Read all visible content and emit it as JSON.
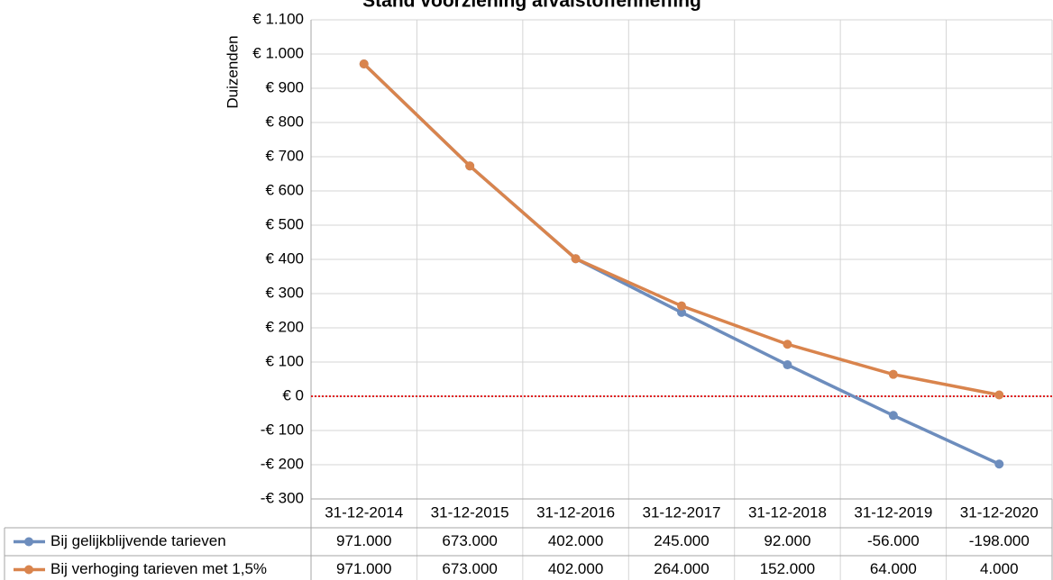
{
  "chart_data": {
    "type": "line",
    "title": "Stand voorziening afvalstoffenheffing",
    "y_label": "Duizenden",
    "categories": [
      "31-12-2014",
      "31-12-2015",
      "31-12-2016",
      "31-12-2017",
      "31-12-2018",
      "31-12-2019",
      "31-12-2020"
    ],
    "series": [
      {
        "name": "Bij gelijkblijvende tarieven",
        "color": "#6d8dbd",
        "values": [
          971,
          673,
          402,
          245,
          92,
          -56,
          -198
        ],
        "value_labels": [
          "971.000",
          "673.000",
          "402.000",
          "245.000",
          "92.000",
          "-56.000",
          "-198.000"
        ]
      },
      {
        "name": "Bij verhoging tarieven met 1,5%",
        "color": "#d9844d",
        "values": [
          971,
          673,
          402,
          264,
          152,
          64,
          4
        ],
        "value_labels": [
          "971.000",
          "673.000",
          "402.000",
          "264.000",
          "152.000",
          "64.000",
          "4.000"
        ]
      }
    ],
    "ylim": [
      -300,
      1100
    ],
    "yticks": [
      {
        "value": -300,
        "label": "-€ 300"
      },
      {
        "value": -200,
        "label": "-€ 200"
      },
      {
        "value": -100,
        "label": "-€ 100"
      },
      {
        "value": 0,
        "label": "€ 0"
      },
      {
        "value": 100,
        "label": "€ 100"
      },
      {
        "value": 200,
        "label": "€ 200"
      },
      {
        "value": 300,
        "label": "€ 300"
      },
      {
        "value": 400,
        "label": "€ 400"
      },
      {
        "value": 500,
        "label": "€ 500"
      },
      {
        "value": 600,
        "label": "€ 600"
      },
      {
        "value": 700,
        "label": "€ 700"
      },
      {
        "value": 800,
        "label": "€ 800"
      },
      {
        "value": 900,
        "label": "€ 900"
      },
      {
        "value": 1000,
        "label": "€ 1.000"
      },
      {
        "value": 1100,
        "label": "€ 1.100"
      }
    ],
    "grid": true,
    "data_table": true
  }
}
